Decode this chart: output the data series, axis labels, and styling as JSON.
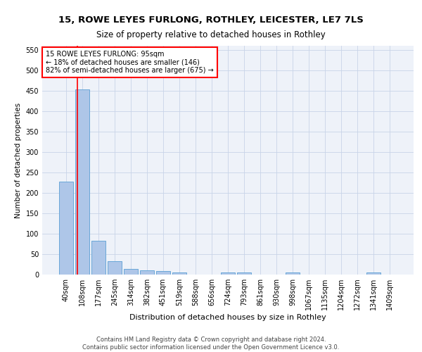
{
  "title": "15, ROWE LEYES FURLONG, ROTHLEY, LEICESTER, LE7 7LS",
  "subtitle": "Size of property relative to detached houses in Rothley",
  "xlabel": "Distribution of detached houses by size in Rothley",
  "ylabel": "Number of detached properties",
  "footer_line1": "Contains HM Land Registry data © Crown copyright and database right 2024.",
  "footer_line2": "Contains public sector information licensed under the Open Government Licence v3.0.",
  "annotation_line1": "15 ROWE LEYES FURLONG: 95sqm",
  "annotation_line2": "← 18% of detached houses are smaller (146)",
  "annotation_line3": "82% of semi-detached houses are larger (675) →",
  "bar_labels": [
    "40sqm",
    "108sqm",
    "177sqm",
    "245sqm",
    "314sqm",
    "382sqm",
    "451sqm",
    "519sqm",
    "588sqm",
    "656sqm",
    "724sqm",
    "793sqm",
    "861sqm",
    "930sqm",
    "998sqm",
    "1067sqm",
    "1135sqm",
    "1204sqm",
    "1272sqm",
    "1341sqm",
    "1409sqm"
  ],
  "bar_values": [
    227,
    453,
    83,
    32,
    13,
    10,
    8,
    5,
    0,
    0,
    5,
    5,
    0,
    0,
    5,
    0,
    0,
    0,
    0,
    5,
    0
  ],
  "bar_color": "#aec6e8",
  "bar_edge_color": "#5a9fd4",
  "red_line_x": 0.72,
  "ylim": [
    0,
    560
  ],
  "yticks": [
    0,
    50,
    100,
    150,
    200,
    250,
    300,
    350,
    400,
    450,
    500,
    550
  ],
  "bg_color": "#eef2f9",
  "grid_color": "#c8d4e8",
  "title_fontsize": 9.5,
  "subtitle_fontsize": 8.5,
  "xlabel_fontsize": 8,
  "ylabel_fontsize": 7.5,
  "tick_fontsize": 7,
  "footer_fontsize": 6,
  "annot_fontsize": 7
}
